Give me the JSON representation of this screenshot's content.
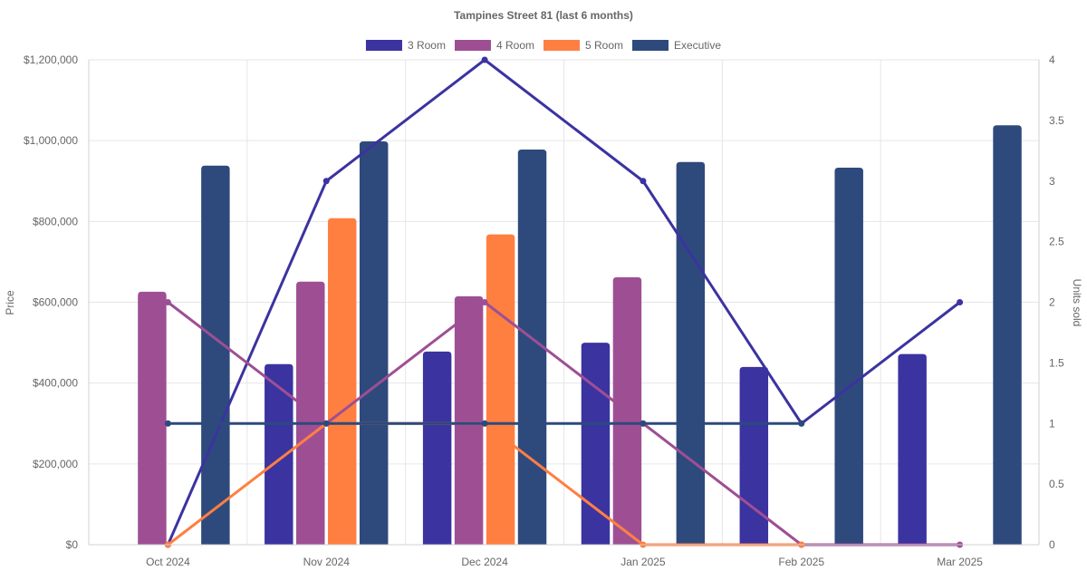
{
  "chart_data": {
    "type": "bar",
    "title": "Tampines Street 81 (last 6 months)",
    "categories": [
      "Oct 2024",
      "Nov 2024",
      "Dec 2024",
      "Jan 2025",
      "Feb 2025",
      "Mar 2025"
    ],
    "ylabel_left": "Price",
    "ylabel_right": "Units sold",
    "ylim_left": [
      0,
      1200000
    ],
    "ylim_right": [
      0,
      4
    ],
    "left_ticks": [
      "$0",
      "$200,000",
      "$400,000",
      "$600,000",
      "$800,000",
      "$1,000,000",
      "$1,200,000"
    ],
    "right_ticks": [
      "0",
      "0.5",
      "1",
      "1.5",
      "2",
      "2.5",
      "3",
      "3.5",
      "4"
    ],
    "grid": true,
    "legend_position": "top",
    "series": [
      {
        "name": "3 Room",
        "color": "#3b33a0",
        "price": [
          null,
          447000,
          478000,
          500000,
          440000,
          472000
        ],
        "units": [
          0,
          3,
          4,
          3,
          1,
          2
        ]
      },
      {
        "name": "4 Room",
        "color": "#9e4f94",
        "price": [
          626000,
          651000,
          615000,
          662000,
          null,
          null
        ],
        "units": [
          2,
          1,
          2,
          1,
          0,
          0
        ]
      },
      {
        "name": "5 Room",
        "color": "#ff7f41",
        "price": [
          null,
          808000,
          768000,
          null,
          null,
          null
        ],
        "units": [
          0,
          1,
          1,
          0,
          0,
          null
        ]
      },
      {
        "name": "Executive",
        "color": "#2e4a7c",
        "price": [
          938000,
          998000,
          978000,
          947000,
          933000,
          1038000
        ],
        "units": [
          1,
          1,
          1,
          1,
          1,
          null
        ]
      }
    ]
  }
}
